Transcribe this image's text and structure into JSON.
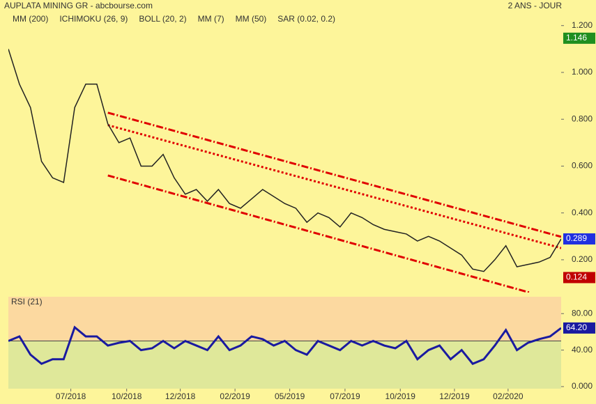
{
  "header": {
    "title": "AUPLATA MINING GR - abcbourse.com",
    "period": "2 ANS - JOUR"
  },
  "chart_data": [
    {
      "type": "line",
      "legend": [
        {
          "name": "MM (200)",
          "color": "#0000c0"
        },
        {
          "name": "ICHIMOKU (26, 9)",
          "color": "#0000c0"
        },
        {
          "name": "BOLL (20, 2)",
          "color": "#f0a040"
        },
        {
          "name": "MM (7)",
          "color": "#008000"
        },
        {
          "name": "MM (50)",
          "color": "#c00000"
        },
        {
          "name": "SAR (0.02, 0.2)",
          "color": "#c00000"
        }
      ],
      "x": [
        0,
        2,
        4,
        6,
        8,
        10,
        12,
        14,
        16,
        18,
        20,
        22,
        24,
        26,
        28,
        30,
        32,
        34,
        36,
        38,
        40,
        42,
        44,
        46,
        48,
        50,
        52,
        54,
        56,
        58,
        60,
        62,
        64,
        66,
        68,
        70,
        72,
        74,
        76,
        78,
        80,
        82,
        84,
        86,
        88,
        90,
        92,
        94,
        96,
        98,
        100
      ],
      "series": [
        {
          "color": "#222222",
          "values": [
            1.1,
            0.95,
            0.85,
            0.62,
            0.55,
            0.53,
            0.85,
            0.95,
            0.95,
            0.78,
            0.7,
            0.72,
            0.6,
            0.6,
            0.65,
            0.55,
            0.48,
            0.5,
            0.45,
            0.5,
            0.44,
            0.42,
            0.46,
            0.5,
            0.47,
            0.44,
            0.42,
            0.36,
            0.4,
            0.38,
            0.34,
            0.4,
            0.38,
            0.35,
            0.33,
            0.32,
            0.31,
            0.28,
            0.3,
            0.28,
            0.25,
            0.22,
            0.16,
            0.15,
            0.2,
            0.26,
            0.17,
            0.18,
            0.19,
            0.21,
            0.289
          ]
        }
      ],
      "channels": [
        {
          "color": "#e00000",
          "dash": "10 3 2 3",
          "x": [
            18,
            100
          ],
          "values": [
            0.828,
            0.298
          ]
        },
        {
          "color": "#e00000",
          "dash": "3 3",
          "x": [
            18,
            100
          ],
          "values": [
            0.775,
            0.25
          ]
        },
        {
          "color": "#e00000",
          "dash": "10 3 2 3",
          "x": [
            18,
            94.3
          ],
          "values": [
            0.56,
            0.06
          ]
        }
      ],
      "price_labels": {
        "values": [
          1.146,
          0.289,
          0.124
        ],
        "colors": [
          "#1f8f1f",
          "#2030e0",
          "#c00000"
        ]
      },
      "xlim": [
        0,
        100
      ],
      "ylim": [
        0.06,
        1.22
      ],
      "yticks": [
        {
          "value": 1.2,
          "label": "1.200"
        },
        {
          "value": 1.0,
          "label": "1.000"
        },
        {
          "value": 0.8,
          "label": "0.800"
        },
        {
          "value": 0.6,
          "label": "0.600"
        },
        {
          "value": 0.4,
          "label": "0.400"
        },
        {
          "value": 0.2,
          "label": "0.200"
        }
      ]
    },
    {
      "type": "line",
      "title": "RSI (21)",
      "x": [
        0,
        2,
        4,
        6,
        8,
        10,
        12,
        14,
        16,
        18,
        20,
        22,
        24,
        26,
        28,
        30,
        32,
        34,
        36,
        38,
        40,
        42,
        44,
        46,
        48,
        50,
        52,
        54,
        56,
        58,
        60,
        62,
        64,
        66,
        68,
        70,
        72,
        74,
        76,
        78,
        80,
        82,
        84,
        86,
        88,
        90,
        92,
        94,
        96,
        98,
        100
      ],
      "series": [
        {
          "color": "#1a1aa0",
          "values": [
            50,
            55,
            35,
            25,
            30,
            30,
            65,
            55,
            55,
            45,
            48,
            50,
            40,
            42,
            50,
            42,
            50,
            45,
            40,
            55,
            40,
            45,
            55,
            52,
            45,
            50,
            40,
            35,
            50,
            45,
            40,
            50,
            45,
            50,
            45,
            42,
            50,
            30,
            40,
            45,
            30,
            40,
            25,
            30,
            45,
            62,
            40,
            48,
            52,
            55,
            64.2
          ]
        }
      ],
      "marker": {
        "values": [
          64.2
        ],
        "value_labels": [
          "64.20"
        ],
        "color": "#1a1aa0"
      },
      "threshold": 50,
      "xlim": [
        0,
        100
      ],
      "ylim": [
        -2.3,
        98.5
      ],
      "yticks": [
        {
          "value": 80,
          "label": "80.00"
        },
        {
          "value": 40,
          "label": "40.00"
        },
        {
          "value": 0,
          "label": "0.000"
        }
      ],
      "xticks": [
        {
          "value": 11.3,
          "label": "07/2018"
        },
        {
          "value": 21.4,
          "label": "10/2018"
        },
        {
          "value": 31.1,
          "label": "12/2018"
        },
        {
          "value": 41.0,
          "label": "02/2019"
        },
        {
          "value": 50.9,
          "label": "05/2019"
        },
        {
          "value": 60.9,
          "label": "07/2019"
        },
        {
          "value": 70.9,
          "label": "10/2019"
        },
        {
          "value": 80.7,
          "label": "12/2019"
        },
        {
          "value": 90.4,
          "label": "02/2020"
        }
      ]
    }
  ]
}
